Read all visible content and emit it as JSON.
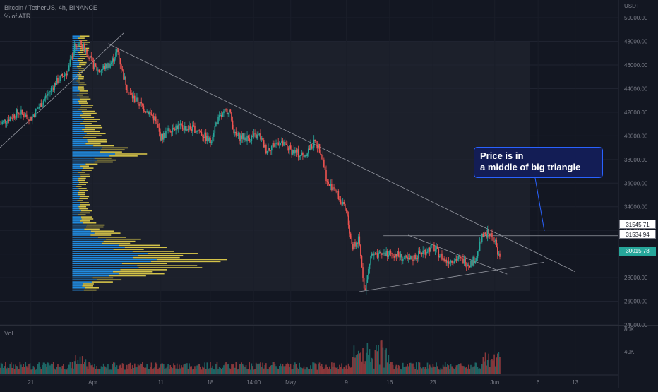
{
  "header": {
    "symbol_line": "Bitcoin / TetherUS, 4h, BINANCE",
    "indicator_line": "% of ATR"
  },
  "volume_pane": {
    "label": "Vol"
  },
  "price_axis": {
    "currency": "USDT"
  },
  "annotation": {
    "callout_line1": "Price is in",
    "callout_line2": "a middle of big triangle"
  },
  "price_labels": {
    "resistance_high": "31545.71",
    "resistance_low": "31534.94",
    "last_price": "30015.78"
  },
  "colors": {
    "background": "#131722",
    "up_candle": "#26a69a",
    "down_candle": "#ef5350",
    "volume_profile_blue": "#2196f3",
    "volume_profile_yellow": "#e8d44d",
    "callout_fill": "#131d55",
    "callout_border": "#2962ff"
  },
  "chart_data": {
    "type": "candlestick",
    "y_ticks": [
      24000,
      26000,
      28000,
      30000,
      32000,
      34000,
      36000,
      38000,
      40000,
      42000,
      44000,
      46000,
      48000,
      50000
    ],
    "y_tick_labels": [
      "24000.00",
      "26000.00",
      "28000.00",
      "30000.00",
      "32000.00",
      "34000.00",
      "36000.00",
      "38000.00",
      "40000.00",
      "42000.00",
      "44000.00",
      "46000.00",
      "48000.00",
      "50000.00"
    ],
    "ylim": [
      24000,
      51500
    ],
    "volume_ticks": [
      40000,
      80000
    ],
    "volume_tick_labels": [
      "40K",
      "80K"
    ],
    "x_ticks": [
      {
        "label": "21",
        "t": 0.05
      },
      {
        "label": "Apr",
        "t": 0.15
      },
      {
        "label": "11",
        "t": 0.26
      },
      {
        "label": "18",
        "t": 0.34
      },
      {
        "label": "14:00",
        "t": 0.41
      },
      {
        "label": "May",
        "t": 0.47
      },
      {
        "label": "9",
        "t": 0.56
      },
      {
        "label": "16",
        "t": 0.63
      },
      {
        "label": "23",
        "t": 0.7
      },
      {
        "label": "Jun",
        "t": 0.8
      },
      {
        "label": "6",
        "t": 0.87
      },
      {
        "label": "13",
        "t": 0.93
      }
    ],
    "price_path": [
      [
        0.0,
        41000
      ],
      [
        0.03,
        42000
      ],
      [
        0.05,
        41500
      ],
      [
        0.07,
        43000
      ],
      [
        0.09,
        44500
      ],
      [
        0.11,
        45500
      ],
      [
        0.12,
        47500
      ],
      [
        0.13,
        47800
      ],
      [
        0.14,
        47200
      ],
      [
        0.15,
        46000
      ],
      [
        0.16,
        45500
      ],
      [
        0.18,
        46200
      ],
      [
        0.19,
        47200
      ],
      [
        0.2,
        45000
      ],
      [
        0.21,
        43500
      ],
      [
        0.23,
        42500
      ],
      [
        0.25,
        41500
      ],
      [
        0.26,
        39800
      ],
      [
        0.28,
        40800
      ],
      [
        0.3,
        40700
      ],
      [
        0.32,
        40500
      ],
      [
        0.34,
        39500
      ],
      [
        0.35,
        41200
      ],
      [
        0.37,
        42300
      ],
      [
        0.38,
        40000
      ],
      [
        0.4,
        39800
      ],
      [
        0.42,
        40000
      ],
      [
        0.43,
        38800
      ],
      [
        0.45,
        39500
      ],
      [
        0.47,
        38800
      ],
      [
        0.49,
        38300
      ],
      [
        0.51,
        39500
      ],
      [
        0.52,
        38600
      ],
      [
        0.53,
        35800
      ],
      [
        0.54,
        35700
      ],
      [
        0.55,
        34500
      ],
      [
        0.56,
        33500
      ],
      [
        0.57,
        30500
      ],
      [
        0.58,
        31200
      ],
      [
        0.59,
        26800
      ],
      [
        0.6,
        30000
      ],
      [
        0.61,
        29700
      ],
      [
        0.62,
        30100
      ],
      [
        0.64,
        30000
      ],
      [
        0.66,
        29400
      ],
      [
        0.68,
        30100
      ],
      [
        0.7,
        30600
      ],
      [
        0.72,
        29400
      ],
      [
        0.74,
        29600
      ],
      [
        0.76,
        29200
      ],
      [
        0.77,
        29700
      ],
      [
        0.78,
        31500
      ],
      [
        0.79,
        31800
      ],
      [
        0.8,
        31200
      ],
      [
        0.805,
        29800
      ],
      [
        0.81,
        30015
      ]
    ],
    "trendlines": [
      {
        "from": [
          0.0,
          39000
        ],
        "to": [
          0.2,
          48700
        ]
      },
      {
        "from": [
          0.175,
          47800
        ],
        "to": [
          0.93,
          28500
        ]
      },
      {
        "from": [
          0.58,
          26800
        ],
        "to": [
          0.88,
          29300
        ]
      },
      {
        "from": [
          0.66,
          31600
        ],
        "to": [
          0.82,
          28300
        ]
      }
    ],
    "horizontal_levels": [
      31545.71,
      31534.94,
      30015.78
    ],
    "volume_profile": [
      {
        "price": 47500,
        "blue": 0.05,
        "yellow": 0.08
      },
      {
        "price": 45000,
        "blue": 0.04,
        "yellow": 0.05
      },
      {
        "price": 43000,
        "blue": 0.05,
        "yellow": 0.09
      },
      {
        "price": 41000,
        "blue": 0.08,
        "yellow": 0.14
      },
      {
        "price": 39500,
        "blue": 0.1,
        "yellow": 0.17
      },
      {
        "price": 38500,
        "blue": 0.28,
        "yellow": 0.32
      },
      {
        "price": 37500,
        "blue": 0.07,
        "yellow": 0.1
      },
      {
        "price": 36000,
        "blue": 0.04,
        "yellow": 0.07
      },
      {
        "price": 34500,
        "blue": 0.05,
        "yellow": 0.08
      },
      {
        "price": 33000,
        "blue": 0.06,
        "yellow": 0.1
      },
      {
        "price": 32000,
        "blue": 0.12,
        "yellow": 0.2
      },
      {
        "price": 31000,
        "blue": 0.25,
        "yellow": 0.35
      },
      {
        "price": 30000,
        "blue": 0.5,
        "yellow": 0.52
      },
      {
        "price": 29500,
        "blue": 0.55,
        "yellow": 0.7
      },
      {
        "price": 28800,
        "blue": 0.4,
        "yellow": 0.55
      },
      {
        "price": 27500,
        "blue": 0.08,
        "yellow": 0.12
      }
    ]
  }
}
